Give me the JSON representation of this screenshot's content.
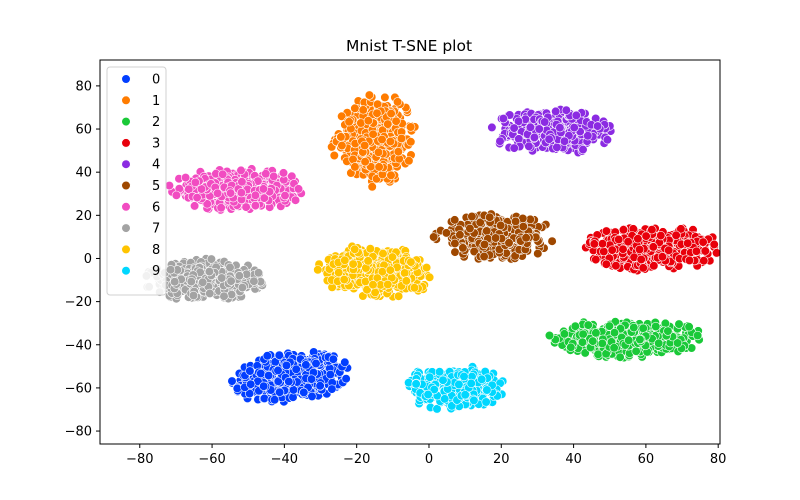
{
  "chart_data": {
    "type": "scatter",
    "title": "Mnist T-SNE plot",
    "xlabel": "",
    "ylabel": "",
    "xlim": [
      -91,
      80.5
    ],
    "ylim": [
      -86,
      92
    ],
    "xticks": [
      -80,
      -60,
      -40,
      -20,
      0,
      20,
      40,
      60,
      80
    ],
    "yticks": [
      -80,
      -60,
      -40,
      -20,
      0,
      20,
      40,
      60,
      80
    ],
    "grid": false,
    "legend_position": "upper-left",
    "series": [
      {
        "name": "0",
        "color": "#023eff",
        "cx": -38,
        "cy": -55,
        "rx": 17,
        "ry": 12,
        "tilt": 15,
        "n": 520
      },
      {
        "name": "1",
        "color": "#ff7c00",
        "cx": -15,
        "cy": 55,
        "rx": 12,
        "ry": 22,
        "tilt": -5,
        "n": 460
      },
      {
        "name": "2",
        "color": "#1ac938",
        "cx": 55,
        "cy": -37,
        "rx": 22,
        "ry": 9,
        "tilt": 0,
        "n": 440
      },
      {
        "name": "3",
        "color": "#e8000b",
        "cx": 62,
        "cy": 5,
        "rx": 19,
        "ry": 11,
        "tilt": 0,
        "n": 460
      },
      {
        "name": "4",
        "color": "#8b2be2",
        "cx": 34,
        "cy": 59,
        "rx": 17,
        "ry": 11,
        "tilt": 0,
        "n": 430
      },
      {
        "name": "5",
        "color": "#9f4800",
        "cx": 18,
        "cy": 10,
        "rx": 17,
        "ry": 11,
        "tilt": 0,
        "n": 420
      },
      {
        "name": "6",
        "color": "#f14cc1",
        "cx": -53,
        "cy": 32,
        "rx": 20,
        "ry": 10,
        "tilt": 0,
        "n": 470
      },
      {
        "name": "7",
        "color": "#a3a3a3",
        "cx": -62,
        "cy": -10,
        "rx": 17,
        "ry": 10,
        "tilt": 0,
        "n": 420
      },
      {
        "name": "8",
        "color": "#ffc400",
        "cx": -15,
        "cy": -6,
        "rx": 17,
        "ry": 12,
        "tilt": -10,
        "n": 470
      },
      {
        "name": "9",
        "color": "#00d7ff",
        "cx": 7,
        "cy": -60,
        "rx": 14,
        "ry": 11,
        "tilt": 0,
        "n": 440
      }
    ]
  }
}
